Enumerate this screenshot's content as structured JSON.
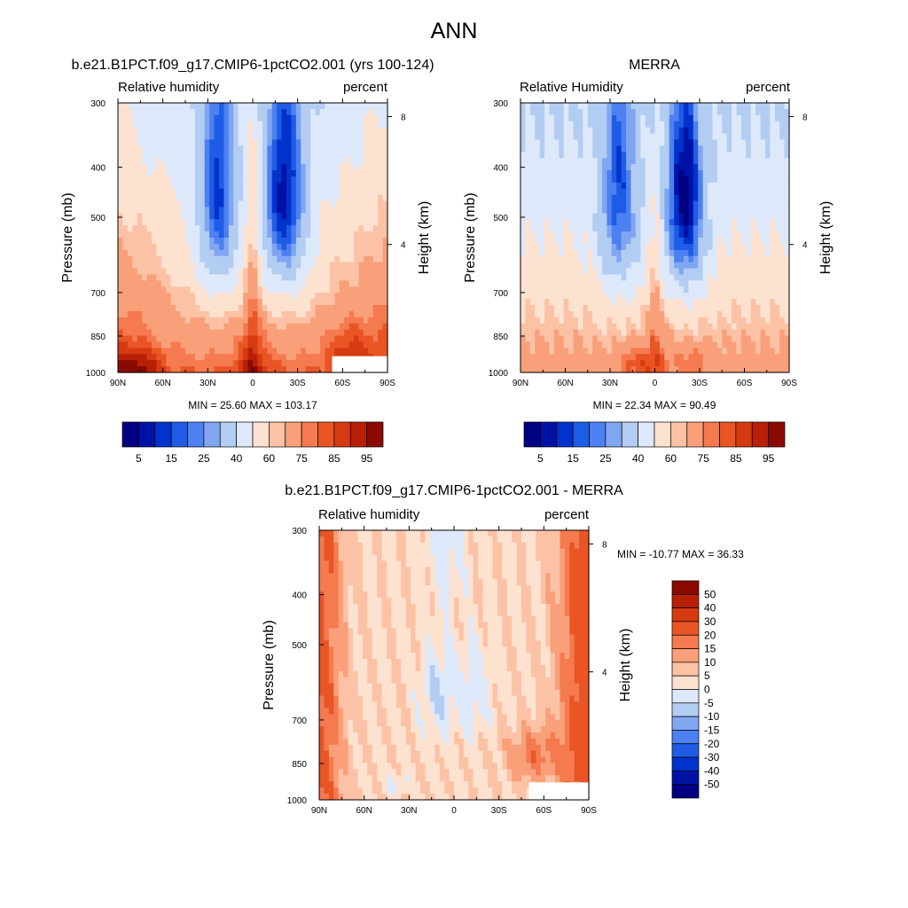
{
  "page_title": "ANN",
  "colors": {
    "absolute_scale": [
      "#000080",
      "#0012a6",
      "#0033cc",
      "#1f5ce6",
      "#4d80f0",
      "#80a6f2",
      "#b3cdf2",
      "#dde8fb",
      "#fde2d0",
      "#fcc2a6",
      "#f9a07a",
      "#f57a4f",
      "#e95525",
      "#d63a10",
      "#b82006",
      "#8b0a00"
    ],
    "difference_scale": [
      "#000080",
      "#0012a6",
      "#0033cc",
      "#1f5ce6",
      "#4d80f0",
      "#80a6f2",
      "#b3cdf2",
      "#dde8fb",
      "#fde2d0",
      "#fcc2a6",
      "#f9a07a",
      "#f57a4f",
      "#e95525",
      "#d63a10",
      "#b82006",
      "#8b0a00"
    ]
  },
  "chart_data": [
    {
      "type": "heatmap",
      "id": "model",
      "title": "b.e21.B1PCT.f09_g17.CMIP6-1pctCO2.001 (yrs 100-124)",
      "left_label": "Relative humidity",
      "right_label": "percent",
      "ylabel": "Pressure (mb)",
      "y2label": "Height (km)",
      "x_ticks": [
        "90N",
        "60N",
        "30N",
        "0",
        "30S",
        "60S",
        "90S"
      ],
      "x_range": [
        90,
        -90
      ],
      "y_ticks": [
        "300",
        "400",
        "500",
        "700",
        "850",
        "1000"
      ],
      "y_tick_values": [
        300,
        400,
        500,
        700,
        850,
        1000
      ],
      "y_range": [
        300,
        1000
      ],
      "y2_ticks": [
        "8",
        "4"
      ],
      "y2_tick_values": [
        8,
        4
      ],
      "stats": "MIN =  25.60  MAX = 103.17",
      "min": 25.6,
      "max": 103.17,
      "colorbar_ticks": [
        "5",
        "15",
        "25",
        "40",
        "60",
        "75",
        "85",
        "95"
      ],
      "levels": [
        5,
        10,
        15,
        20,
        25,
        30,
        40,
        50,
        60,
        65,
        75,
        80,
        85,
        90,
        95
      ],
      "missing_region": {
        "lat_from": -53,
        "lat_to": -90,
        "p_from": 930,
        "p_to": 1000
      }
    },
    {
      "type": "heatmap",
      "id": "obs",
      "title": "MERRA",
      "left_label": "Relative Humidity",
      "right_label": "percent",
      "ylabel": "Pressure (mb)",
      "y2label": "Height (km)",
      "x_ticks": [
        "90N",
        "60N",
        "30N",
        "0",
        "30S",
        "60S",
        "90S"
      ],
      "x_range": [
        90,
        -90
      ],
      "y_ticks": [
        "300",
        "400",
        "500",
        "700",
        "850",
        "1000"
      ],
      "y_tick_values": [
        300,
        400,
        500,
        700,
        850,
        1000
      ],
      "y_range": [
        300,
        1000
      ],
      "y2_ticks": [
        "8",
        "4"
      ],
      "y2_tick_values": [
        8,
        4
      ],
      "stats": "MIN =  22.34  MAX =  90.49",
      "min": 22.34,
      "max": 90.49,
      "colorbar_ticks": [
        "5",
        "15",
        "25",
        "40",
        "60",
        "75",
        "85",
        "95"
      ],
      "levels": [
        5,
        10,
        15,
        20,
        25,
        30,
        40,
        50,
        60,
        65,
        75,
        80,
        85,
        90,
        95
      ]
    },
    {
      "type": "heatmap",
      "id": "diff",
      "title": "b.e21.B1PCT.f09_g17.CMIP6-1pctCO2.001 - MERRA",
      "left_label": "Relative humidity",
      "right_label": "percent",
      "ylabel": "Pressure (mb)",
      "y2label": "Height (km)",
      "x_ticks": [
        "90N",
        "60N",
        "30N",
        "0",
        "30S",
        "60S",
        "90S"
      ],
      "x_range": [
        90,
        -90
      ],
      "y_ticks": [
        "300",
        "400",
        "500",
        "700",
        "850",
        "1000"
      ],
      "y_tick_values": [
        300,
        400,
        500,
        700,
        850,
        1000
      ],
      "y_range": [
        300,
        1000
      ],
      "y2_ticks": [
        "8",
        "4"
      ],
      "y2_tick_values": [
        8,
        4
      ],
      "stats": "MIN = -10.77  MAX =  36.33",
      "min": -10.77,
      "max": 36.33,
      "colorbar_ticks": [
        "50",
        "40",
        "30",
        "20",
        "15",
        "10",
        "5",
        "0",
        "-5",
        "-10",
        "-15",
        "-20",
        "-30",
        "-40",
        "-50"
      ],
      "levels": [
        -50,
        -40,
        -30,
        -20,
        -15,
        -10,
        -5,
        0,
        5,
        10,
        15,
        20,
        30,
        40,
        50
      ],
      "missing_region": {
        "lat_from": -50,
        "lat_to": -90,
        "p_from": 925,
        "p_to": 1000
      }
    }
  ]
}
